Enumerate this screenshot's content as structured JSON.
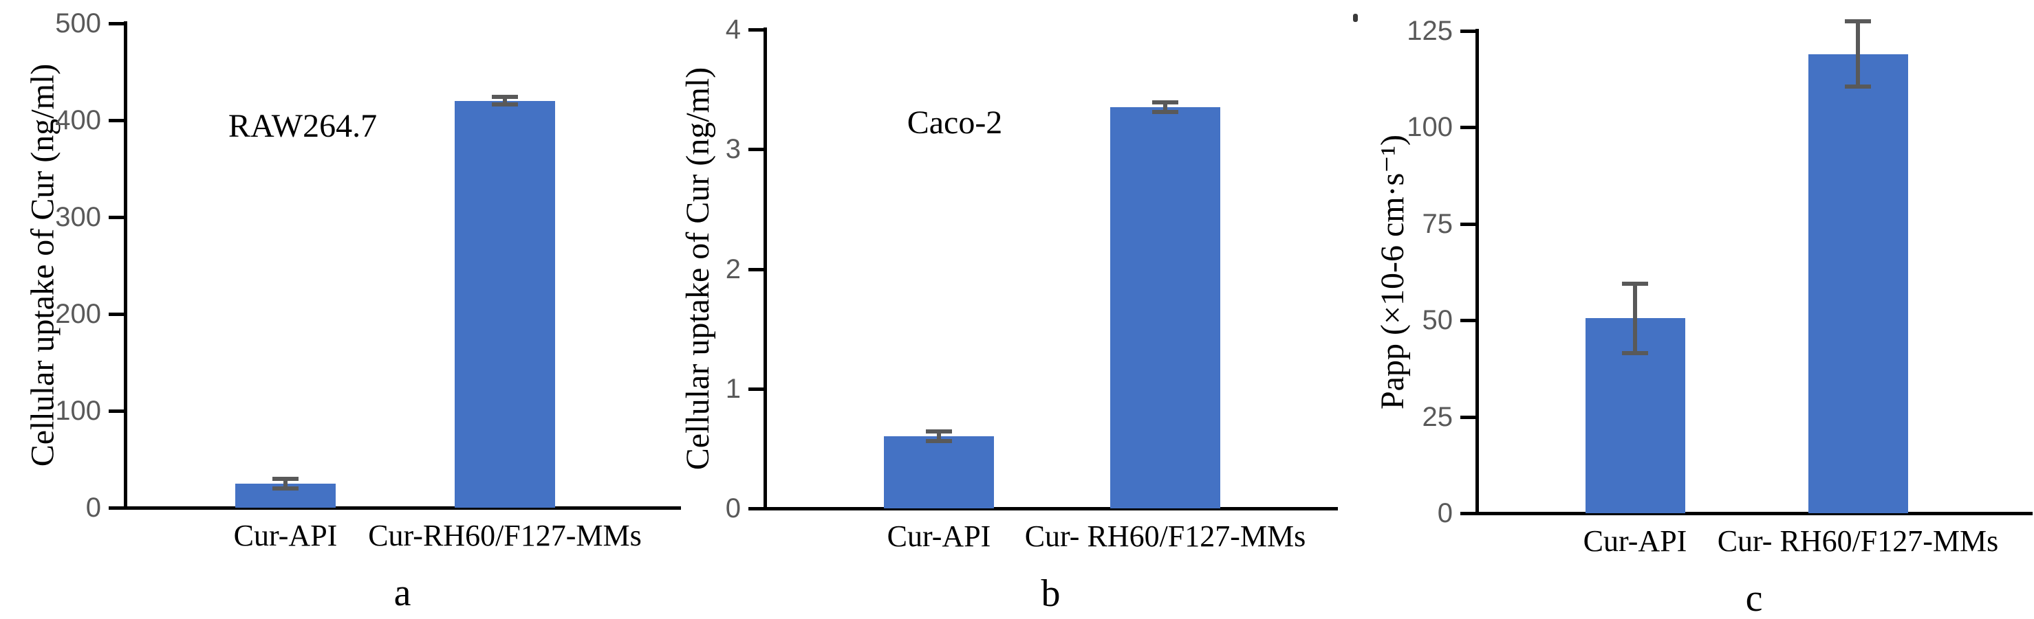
{
  "styles": {
    "bar_color": "#4472C4",
    "axis_color": "#000000",
    "tick_label_color": "#595959",
    "error_bar_color": "#595959",
    "text_color": "#000000",
    "background": "#ffffff"
  },
  "chart_data": [
    {
      "type": "bar",
      "panel_label": "a",
      "annotation": "RAW264.7",
      "ylabel": "Cellular uptake of Cur (ng/ml)",
      "xlabel": "",
      "ylim": [
        0,
        500
      ],
      "yticks": [
        0,
        100,
        200,
        300,
        400,
        500
      ],
      "categories": [
        "Cur-API",
        "Cur-RH60/F127-MMs"
      ],
      "values": [
        25,
        420
      ],
      "errors": [
        5,
        4
      ],
      "grid": false,
      "legend": false
    },
    {
      "type": "bar",
      "panel_label": "b",
      "annotation": "Caco-2",
      "ylabel": "Cellular uptake of Cur (ng/ml)",
      "xlabel": "",
      "ylim": [
        0,
        4
      ],
      "yticks": [
        0,
        1,
        2,
        3,
        4
      ],
      "categories": [
        "Cur-API",
        "Cur- RH60/F127-MMs"
      ],
      "values": [
        0.6,
        3.35
      ],
      "errors": [
        0.04,
        0.04
      ],
      "grid": false,
      "legend": false
    },
    {
      "type": "bar",
      "panel_label": "c",
      "annotation": "",
      "ylabel": "Papp (×10-6 cm·s⁻¹)",
      "xlabel": "",
      "ylim": [
        0,
        125
      ],
      "yticks": [
        0,
        25,
        50,
        75,
        100,
        125
      ],
      "categories": [
        "Cur-API",
        "Cur- RH60/F127-MMs"
      ],
      "values": [
        50.5,
        119
      ],
      "errors": [
        9,
        8.5
      ],
      "grid": false,
      "legend": false
    }
  ]
}
